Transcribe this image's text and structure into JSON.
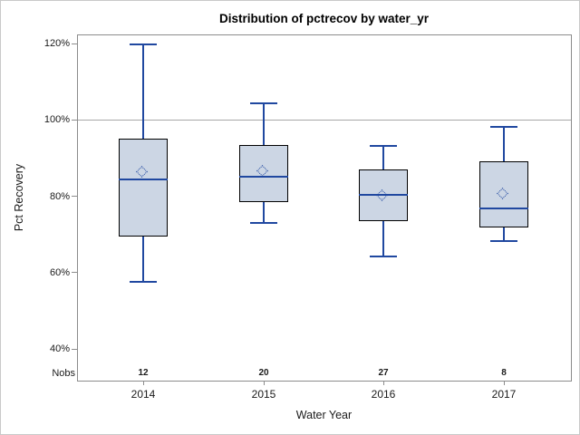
{
  "window": {
    "background": "#ffffff",
    "border_color": "#c9c9c9"
  },
  "chart_data": {
    "type": "box",
    "title": "Distribution of pctrecov by water_yr",
    "xlabel": "Water Year",
    "ylabel": "Pct Recovery",
    "categories": [
      "2014",
      "2015",
      "2016",
      "2017"
    ],
    "nobs_label": "Nobs",
    "nobs": [
      "12",
      "20",
      "27",
      "8"
    ],
    "y_ticks": [
      40,
      60,
      80,
      100,
      120
    ],
    "y_tick_labels": [
      "40%",
      "60%",
      "80%",
      "100%",
      "120%"
    ],
    "ylim": [
      32,
      122.5
    ],
    "reference_line": 100,
    "grid": "off",
    "legend": "none",
    "series": [
      {
        "category": "2014",
        "n": 12,
        "whisker_low": 57.6,
        "q1": 69.4,
        "median": 84.5,
        "mean": 86.1,
        "q3": 95.1,
        "whisker_high": 119.7
      },
      {
        "category": "2015",
        "n": 20,
        "whisker_low": 73.0,
        "q1": 78.5,
        "median": 85.0,
        "mean": 86.3,
        "q3": 93.4,
        "whisker_high": 104.3
      },
      {
        "category": "2016",
        "n": 27,
        "whisker_low": 64.1,
        "q1": 73.5,
        "median": 80.3,
        "mean": 79.9,
        "q3": 87.1,
        "whisker_high": 93.2
      },
      {
        "category": "2017",
        "n": 8,
        "whisker_low": 68.2,
        "q1": 71.8,
        "median": 76.9,
        "mean": 80.3,
        "q3": 89.2,
        "whisker_high": 98.2
      }
    ],
    "colors": {
      "box_fill": "#ccd6e4",
      "box_border": "#000000",
      "line_blue": "#2048a0",
      "reference_line": "#a8a8a8",
      "frame": "#8c8c8c",
      "text": "#1a1a1a"
    }
  }
}
